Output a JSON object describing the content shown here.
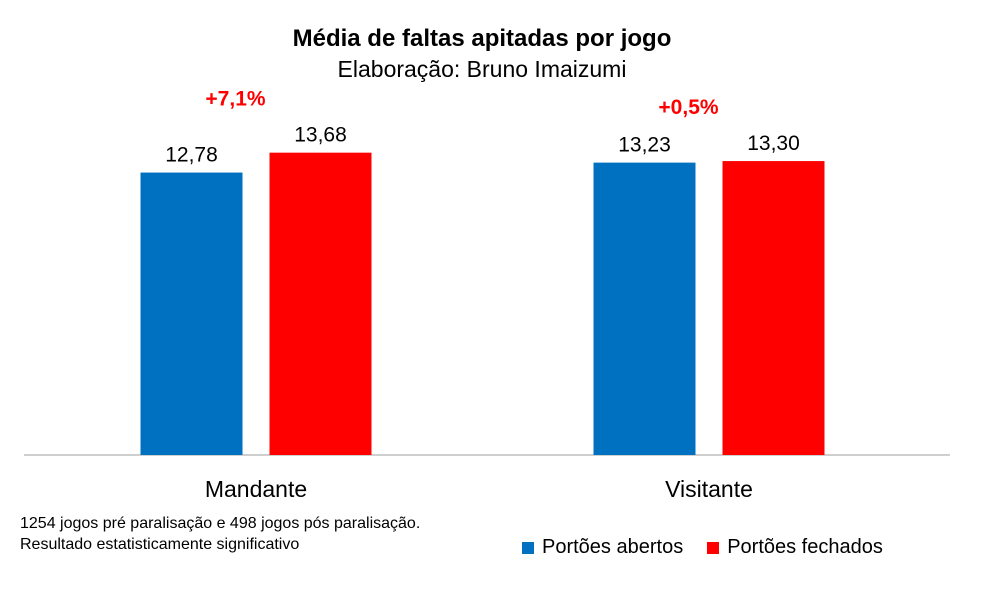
{
  "colors": {
    "open": "#0070C0",
    "closed": "#FF0000",
    "pct": "#FF0000",
    "axis": "#BFBFBF"
  },
  "notes": {
    "line1": "1254 jogos pré paralisação e 498 jogos pós paralisação.",
    "line2": "Resultado estatisticamente significativo"
  },
  "chart_data": {
    "type": "bar",
    "title": "Média de faltas apitadas por jogo",
    "subtitle": "Elaboração: Bruno Imaizumi",
    "categories": [
      "Mandante",
      "Visitante"
    ],
    "series": [
      {
        "name": "Portões abertos",
        "values": [
          12.78,
          13.23
        ],
        "labels": [
          "12,78",
          "13,23"
        ]
      },
      {
        "name": "Portões fechados",
        "values": [
          13.68,
          13.3
        ],
        "labels": [
          "13,68",
          "13,30"
        ]
      }
    ],
    "annotations": [
      "+7,1%",
      "+0,5%"
    ],
    "ylim": [
      0,
      14
    ],
    "grid": false,
    "legend": "bottom-right"
  }
}
